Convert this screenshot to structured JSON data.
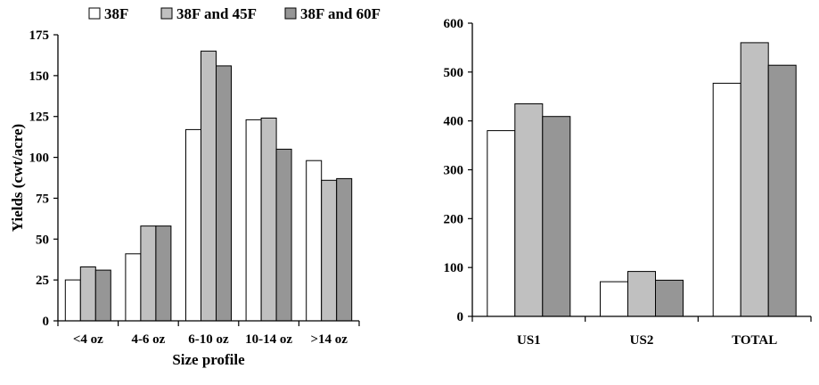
{
  "colors": {
    "s0": "#ffffff",
    "s1": "#c0c0c0",
    "s2": "#969696",
    "stroke": "#000000"
  },
  "legend": {
    "placement": "top-left"
  },
  "chart_data": [
    {
      "type": "bar",
      "categories": [
        "<4 oz",
        "4-6 oz",
        "6-10 oz",
        "10-14 oz",
        ">14 oz"
      ],
      "series": [
        {
          "name": "38F",
          "values": [
            25,
            41,
            117,
            123,
            98
          ]
        },
        {
          "name": "38F and 45F",
          "values": [
            33,
            58,
            165,
            124,
            86
          ]
        },
        {
          "name": "38F and 60F",
          "values": [
            31,
            58,
            156,
            105,
            87
          ]
        }
      ],
      "xlabel": "Size profile",
      "ylabel": "Yields (cwt/acre)",
      "ylim": [
        0,
        175
      ],
      "yticks": [
        0,
        25,
        50,
        75,
        100,
        125,
        150,
        175
      ],
      "grid": false
    },
    {
      "type": "bar",
      "categories": [
        "US1",
        "US2",
        "TOTAL"
      ],
      "series": [
        {
          "name": "38F",
          "values": [
            380,
            71,
            477
          ]
        },
        {
          "name": "38F and 45F",
          "values": [
            435,
            92,
            560
          ]
        },
        {
          "name": "38F and 60F",
          "values": [
            409,
            74,
            514
          ]
        }
      ],
      "xlabel": "",
      "ylabel": "",
      "ylim": [
        0,
        600
      ],
      "yticks": [
        0,
        100,
        200,
        300,
        400,
        500,
        600
      ],
      "grid": false
    }
  ]
}
